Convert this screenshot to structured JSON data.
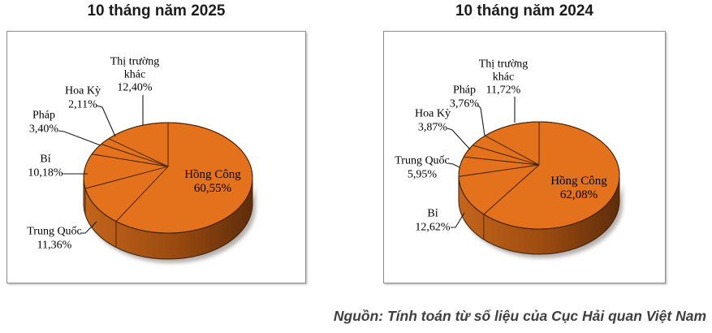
{
  "chart_data": [
    {
      "type": "pie",
      "title": "10 tháng năm 2025",
      "unit": "%",
      "labels": [
        "Hồng Công",
        "Trung Quốc",
        "Bỉ",
        "Pháp",
        "Hoa Kỳ",
        "Thị trường khác"
      ],
      "values": [
        60.55,
        11.36,
        10.18,
        3.4,
        2.11,
        12.4
      ],
      "value_labels": [
        "60,55%",
        "11,36%",
        "10,18%",
        "3,40%",
        "2,11%",
        "12,40%"
      ],
      "start_angle_deg": 0,
      "direction": "clockwise",
      "legend": "none",
      "style": "3D pie, single orange color, labels outside with leader lines, largest slice labeled inside"
    },
    {
      "type": "pie",
      "title": "10 tháng năm 2024",
      "unit": "%",
      "labels": [
        "Hồng Công",
        "Bỉ",
        "Trung Quốc",
        "Hoa Kỳ",
        "Pháp",
        "Thị trường khác"
      ],
      "values": [
        62.08,
        12.62,
        5.95,
        3.87,
        3.76,
        11.72
      ],
      "value_labels": [
        "62,08%",
        "12,62%",
        "5,95%",
        "3,87%",
        "3,76%",
        "11,72%"
      ],
      "start_angle_deg": 0,
      "direction": "clockwise",
      "legend": "none",
      "style": "3D pie, single orange color, labels outside with leader lines, largest slice labeled inside"
    }
  ],
  "source_note": "Nguồn: Tính toán từ số liệu của Cục Hải quan Việt Nam",
  "colors": {
    "pie_top": "#E4711C",
    "pie_side_light": "#C4651B",
    "pie_side_mid": "#9A4A10",
    "pie_side_dark": "#5E2D0B",
    "outline": "#3E2205",
    "leader_line": "#1A1A1A",
    "inside_label": "#2E1705",
    "title_text": "#1C1C1C",
    "source_text": "#3F3F3F",
    "frame_border": "#8C8C8C"
  }
}
